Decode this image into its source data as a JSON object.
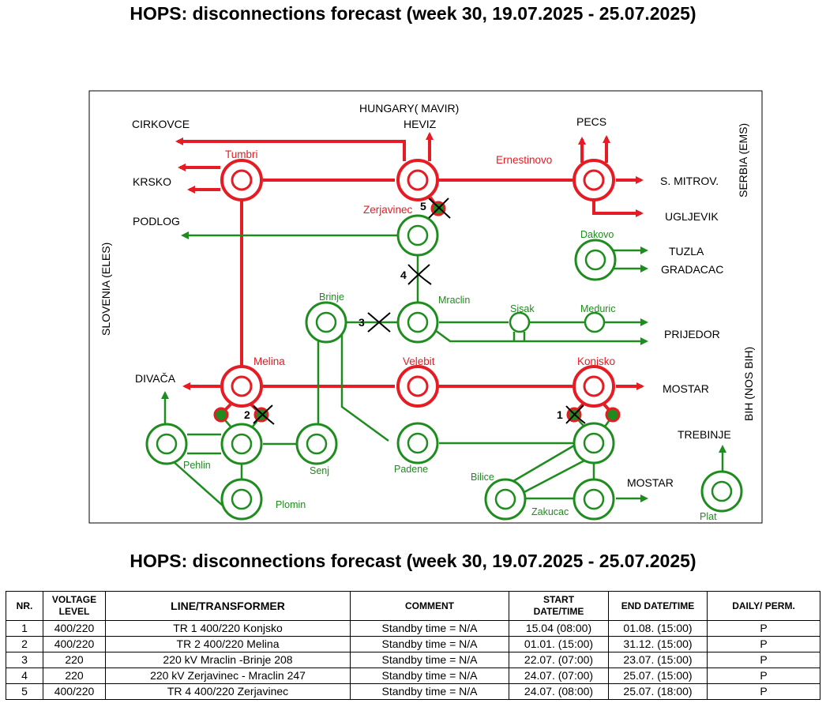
{
  "titles": {
    "top": "HOPS: disconnections forecast (week 30, 19.07.2025 - 25.07.2025)",
    "bottom": "HOPS: disconnections forecast (week 30, 19.07.2025 - 25.07.2025)"
  },
  "map": {
    "countries": {
      "hungary": "HUNGARY( MAVIR)",
      "serbia": "SERBIA (EMS)",
      "slovenia": "SLOVENIA (ELES)",
      "bih": "BIH (NOS BIH)"
    },
    "external": {
      "cirkovce": "CIRKOVCE",
      "krsko": "KRSKO",
      "podlog": "PODLOG",
      "heviz": "HEVIZ",
      "pecs": "PECS",
      "s_mitrov": "S. MITROV.",
      "ugljevik": "UGLJEVIK",
      "tuzla": "TUZLA",
      "gradacac": "GRADACAC",
      "prijedor": "PRIJEDOR",
      "mostar_1": "MOSTAR",
      "mostar_2": "MOSTAR",
      "divaca": "DIVAČA",
      "trebinje": "TREBINJE"
    },
    "stations_400": {
      "tumbri": "Tumbri",
      "heviz_node": "Zerjavinec",
      "ernestinovo": "Ernestinovo",
      "melina": "Melina",
      "velebit": "Velebit",
      "konjsko": "Konjsko"
    },
    "stations_220": {
      "zerjavinec": "Zerjavinec",
      "dakovo": "Dakovo",
      "mraclin": "Mraclin",
      "brinje": "Brinje",
      "sisak": "Sisak",
      "meduric": "Meduric",
      "pehlin": "Pehlin",
      "senj": "Senj",
      "plomin": "Plomin",
      "padene": "Padene",
      "bilice": "Bilice",
      "zakucac": "Zakucac",
      "plat": "Plat"
    },
    "markers": [
      "1",
      "2",
      "3",
      "4",
      "5"
    ],
    "colors": {
      "line_400": "#e51c23",
      "line_220": "#1e8c1e",
      "cross": "#000000"
    }
  },
  "table": {
    "headers": {
      "nr": "NR.",
      "voltage_1": "VOLTAGE",
      "voltage_2": "LEVEL",
      "line": "LINE/TRANSFORMER",
      "comment": "COMMENT",
      "start_1": "START",
      "start_2": "DATE/TIME",
      "end": "END DATE/TIME",
      "daily": "DAILY/ PERM."
    },
    "rows": [
      {
        "nr": "1",
        "voltage": "400/220",
        "line": "TR 1 400/220 Konjsko",
        "comment": "Standby time = N/A",
        "start": "15.04 (08:00)",
        "end": "01.08. (15:00)",
        "daily": "P"
      },
      {
        "nr": "2",
        "voltage": "400/220",
        "line": "TR 2 400/220 Melina",
        "comment": "Standby time = N/A",
        "start": "01.01. (15:00)",
        "end": "31.12. (15:00)",
        "daily": "P"
      },
      {
        "nr": "3",
        "voltage": "220",
        "line": "220 kV Mraclin -Brinje 208",
        "comment": "Standby time = N/A",
        "start": "22.07. (07:00)",
        "end": "23.07. (15:00)",
        "daily": "P"
      },
      {
        "nr": "4",
        "voltage": "220",
        "line": "220 kV Zerjavinec - Mraclin 247",
        "comment": "Standby time = N/A",
        "start": "24.07. (07:00)",
        "end": "25.07. (15:00)",
        "daily": "P"
      },
      {
        "nr": "5",
        "voltage": "400/220",
        "line": "TR 4 400/220 Zerjavinec",
        "comment": "Standby time = N/A",
        "start": "24.07. (08:00)",
        "end": "25.07. (18:00)",
        "daily": "P"
      }
    ]
  }
}
